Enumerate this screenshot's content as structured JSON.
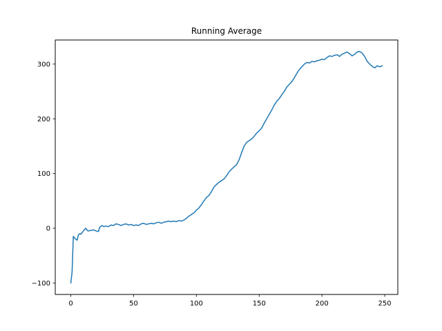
{
  "chart_data": {
    "type": "line",
    "title": "Running Average",
    "xlabel": "",
    "ylabel": "",
    "xlim": [
      -12.4,
      260.4
    ],
    "ylim": [
      -121,
      344
    ],
    "x_ticks": [
      0,
      50,
      100,
      150,
      200,
      250
    ],
    "y_ticks": [
      -100,
      0,
      100,
      200,
      300
    ],
    "x_tick_labels": [
      "0",
      "50",
      "100",
      "150",
      "200",
      "250"
    ],
    "y_tick_labels": [
      "−100",
      "0",
      "100",
      "200",
      "300"
    ],
    "grid": false,
    "legend": "none",
    "series": [
      {
        "color": "#1f77b4",
        "points": [
          [
            0,
            -100
          ],
          [
            1,
            -80
          ],
          [
            2,
            -15
          ],
          [
            3,
            -18
          ],
          [
            4,
            -20
          ],
          [
            5,
            -22
          ],
          [
            6,
            -12
          ],
          [
            7,
            -10
          ],
          [
            8,
            -11
          ],
          [
            9,
            -8
          ],
          [
            10,
            -5
          ],
          [
            11,
            -2
          ],
          [
            12,
            0
          ],
          [
            13,
            -4
          ],
          [
            14,
            -5
          ],
          [
            16,
            -4
          ],
          [
            18,
            -3
          ],
          [
            20,
            -5
          ],
          [
            22,
            -6
          ],
          [
            23,
            2
          ],
          [
            25,
            5
          ],
          [
            26,
            3
          ],
          [
            28,
            4
          ],
          [
            30,
            3
          ],
          [
            32,
            6
          ],
          [
            34,
            5
          ],
          [
            36,
            8
          ],
          [
            38,
            7
          ],
          [
            40,
            5
          ],
          [
            42,
            7
          ],
          [
            44,
            8
          ],
          [
            46,
            6
          ],
          [
            48,
            7
          ],
          [
            50,
            5
          ],
          [
            52,
            6
          ],
          [
            54,
            5
          ],
          [
            56,
            8
          ],
          [
            58,
            9
          ],
          [
            60,
            7
          ],
          [
            62,
            8
          ],
          [
            64,
            9
          ],
          [
            66,
            8
          ],
          [
            68,
            10
          ],
          [
            70,
            11
          ],
          [
            72,
            9
          ],
          [
            74,
            11
          ],
          [
            76,
            12
          ],
          [
            78,
            13
          ],
          [
            80,
            12
          ],
          [
            82,
            13
          ],
          [
            84,
            12
          ],
          [
            86,
            14
          ],
          [
            88,
            13
          ],
          [
            90,
            15
          ],
          [
            92,
            18
          ],
          [
            94,
            22
          ],
          [
            96,
            25
          ],
          [
            98,
            28
          ],
          [
            100,
            33
          ],
          [
            102,
            37
          ],
          [
            104,
            43
          ],
          [
            106,
            50
          ],
          [
            108,
            56
          ],
          [
            110,
            60
          ],
          [
            112,
            67
          ],
          [
            114,
            75
          ],
          [
            116,
            80
          ],
          [
            118,
            84
          ],
          [
            120,
            87
          ],
          [
            122,
            90
          ],
          [
            124,
            96
          ],
          [
            126,
            103
          ],
          [
            128,
            108
          ],
          [
            130,
            112
          ],
          [
            132,
            116
          ],
          [
            134,
            125
          ],
          [
            136,
            138
          ],
          [
            138,
            150
          ],
          [
            140,
            157
          ],
          [
            142,
            160
          ],
          [
            144,
            163
          ],
          [
            146,
            168
          ],
          [
            148,
            174
          ],
          [
            150,
            178
          ],
          [
            152,
            183
          ],
          [
            154,
            192
          ],
          [
            156,
            200
          ],
          [
            158,
            208
          ],
          [
            160,
            216
          ],
          [
            162,
            225
          ],
          [
            164,
            232
          ],
          [
            166,
            237
          ],
          [
            168,
            244
          ],
          [
            170,
            250
          ],
          [
            172,
            258
          ],
          [
            174,
            263
          ],
          [
            176,
            268
          ],
          [
            178,
            275
          ],
          [
            180,
            283
          ],
          [
            182,
            290
          ],
          [
            184,
            295
          ],
          [
            186,
            300
          ],
          [
            188,
            303
          ],
          [
            190,
            302
          ],
          [
            192,
            305
          ],
          [
            194,
            304
          ],
          [
            196,
            306
          ],
          [
            198,
            307
          ],
          [
            200,
            309
          ],
          [
            202,
            308
          ],
          [
            204,
            312
          ],
          [
            206,
            315
          ],
          [
            208,
            314
          ],
          [
            210,
            316
          ],
          [
            212,
            317
          ],
          [
            214,
            314
          ],
          [
            216,
            318
          ],
          [
            218,
            320
          ],
          [
            220,
            322
          ],
          [
            222,
            319
          ],
          [
            224,
            315
          ],
          [
            226,
            318
          ],
          [
            228,
            322
          ],
          [
            230,
            323
          ],
          [
            232,
            320
          ],
          [
            234,
            314
          ],
          [
            236,
            305
          ],
          [
            238,
            300
          ],
          [
            240,
            296
          ],
          [
            242,
            293
          ],
          [
            244,
            297
          ],
          [
            246,
            295
          ],
          [
            248,
            297
          ]
        ]
      }
    ]
  }
}
